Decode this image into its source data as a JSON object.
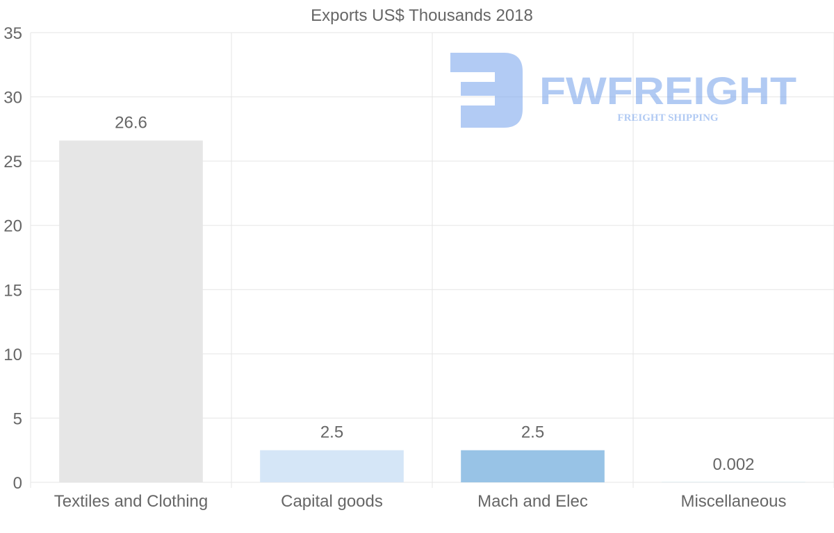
{
  "colors": {
    "text": "#666666",
    "grid": "#e5e5e5",
    "logo": "#7ea8ec"
  },
  "watermark": {
    "brand": "FWFREIGHT",
    "tagline": "FREIGHT SHIPPING"
  },
  "chart_data": {
    "type": "bar",
    "title": "Exports US$ Thousands 2018",
    "xlabel": "",
    "ylabel": "",
    "ylim": [
      0,
      35
    ],
    "yticks": [
      0,
      5,
      10,
      15,
      20,
      25,
      30,
      35
    ],
    "grid": true,
    "categories": [
      "Textiles and Clothing",
      "Capital goods",
      "Mach and Elec",
      "Miscellaneous"
    ],
    "values": [
      26.6,
      2.5,
      2.5,
      0.002
    ],
    "data_labels": [
      "26.6",
      "2.5",
      "2.5",
      "0.002"
    ],
    "bar_colors": [
      "#e6e6e6",
      "#d5e6f7",
      "#98c3e6",
      "#cfe3e8"
    ]
  }
}
